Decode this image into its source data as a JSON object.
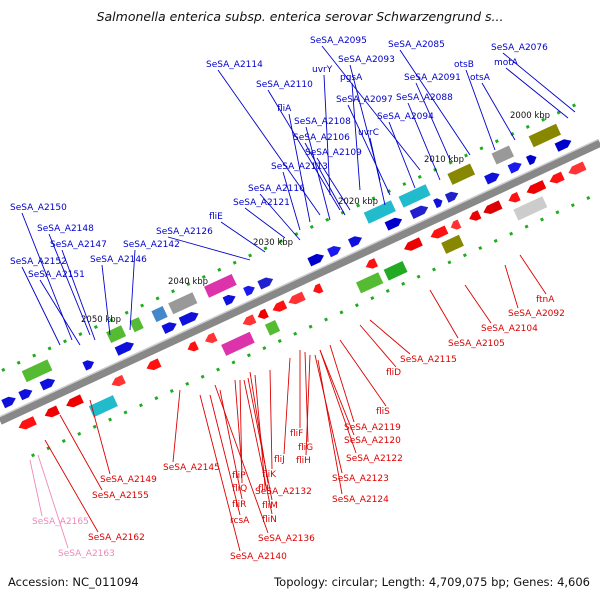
{
  "title": "Salmonella enterica subsp. enterica serovar Schwarzengrund s...",
  "footer": {
    "accession": "Accession: NC_011094",
    "topology": "Topology: circular; Length: 4,709,075 bp; Genes: 4,606"
  },
  "kbp_labels": [
    "2000 kbp",
    "2010 kbp",
    "2020 kbp",
    "2030 kbp",
    "2040 kbp",
    "2050 kbp"
  ],
  "colors": {
    "forward": "#0000cc",
    "reverse": "#dd0000",
    "pseudo": "#ee88bb",
    "backbone": "#888888"
  },
  "forward_labels": [
    "SeSA_A2095",
    "SeSA_A2085",
    "SeSA_A2076",
    "SeSA_A2093",
    "otsB",
    "motA",
    "uvrY",
    "pgsA",
    "SeSA_A2091",
    "otsA",
    "SeSA_A2114",
    "SeSA_A2110",
    "SeSA_A2097",
    "SeSA_A2088",
    "fliA",
    "SeSA_A2094",
    "SeSA_A2108",
    "uvrC",
    "SeSA_A2106",
    "SeSA_A2109",
    "SeSA_A2113",
    "SeSA_A2116",
    "SeSA_A2121",
    "fliE",
    "SeSA_A2150",
    "SeSA_A2148",
    "SeSA_A2126",
    "SeSA_A2147",
    "SeSA_A2142",
    "SeSA_A2152",
    "SeSA_A2146",
    "SeSA_A2151"
  ],
  "reverse_labels": [
    "ftnA",
    "SeSA_A2092",
    "SeSA_A2104",
    "SeSA_A2105",
    "SeSA_A2115",
    "fliD",
    "fliS",
    "SeSA_A2119",
    "SeSA_A2120",
    "fliF",
    "fliG",
    "fliH",
    "SeSA_A2122",
    "fliJ",
    "SeSA_A2123",
    "SeSA_A2124",
    "SeSA_A2145",
    "fliK",
    "fliL",
    "fliP",
    "fliQ",
    "SeSA_A2132",
    "fliM",
    "fliN",
    "SeSA_A2149",
    "SeSA_A2155",
    "fliR",
    "rcsA",
    "SeSA_A2136",
    "SeSA_A2140",
    "SeSA_A2162"
  ],
  "pseudo_labels": [
    "SeSA_A2165",
    "SeSA_A2163"
  ]
}
